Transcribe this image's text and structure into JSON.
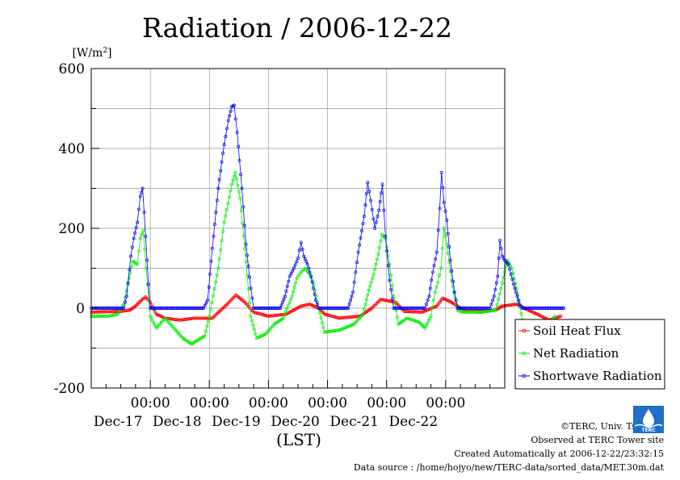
{
  "chart_data": {
    "type": "line",
    "title": "Radiation / 2006-12-22",
    "ylabel": "[W/m2]",
    "xlabel": "(LST)",
    "ylim": [
      -200,
      600
    ],
    "yticks": [
      -200,
      0,
      200,
      400,
      600
    ],
    "xlim_days": [
      -1,
      6
    ],
    "x_ticks": [
      {
        "time": "00:00",
        "date": "Dec-17"
      },
      {
        "time": "00:00",
        "date": "Dec-18"
      },
      {
        "time": "00:00",
        "date": "Dec-19"
      },
      {
        "time": "00:00",
        "date": "Dec-20"
      },
      {
        "time": "00:00",
        "date": "Dec-21"
      },
      {
        "time": "00:00",
        "date": "Dec-22"
      }
    ],
    "grid": true,
    "legend_position": "right",
    "series": [
      {
        "name": "Soil Heat Flux",
        "color": "#ff0000",
        "points": [
          [
            -1,
            -10
          ],
          [
            -0.5,
            -8
          ],
          [
            -0.35,
            -5
          ],
          [
            -0.25,
            5
          ],
          [
            -0.15,
            20
          ],
          [
            -0.08,
            28
          ],
          [
            0,
            15
          ],
          [
            0.1,
            -15
          ],
          [
            0.25,
            -25
          ],
          [
            0.5,
            -30
          ],
          [
            0.75,
            -25
          ],
          [
            1.05,
            -25
          ],
          [
            1.3,
            10
          ],
          [
            1.45,
            33
          ],
          [
            1.6,
            15
          ],
          [
            1.75,
            -10
          ],
          [
            2.0,
            -20
          ],
          [
            2.3,
            -15
          ],
          [
            2.55,
            5
          ],
          [
            2.7,
            10
          ],
          [
            2.85,
            0
          ],
          [
            2.95,
            -15
          ],
          [
            3.2,
            -25
          ],
          [
            3.55,
            -20
          ],
          [
            3.75,
            0
          ],
          [
            3.9,
            22
          ],
          [
            4.15,
            15
          ],
          [
            4.3,
            -8
          ],
          [
            4.6,
            -10
          ],
          [
            4.85,
            5
          ],
          [
            4.95,
            25
          ],
          [
            5.1,
            15
          ],
          [
            5.3,
            -5
          ],
          [
            5.6,
            -8
          ],
          [
            5.85,
            -5
          ],
          [
            5.95,
            5
          ],
          [
            6.2,
            10
          ],
          [
            6.4,
            -5
          ],
          [
            6.55,
            -15
          ],
          [
            6.75,
            -30
          ],
          [
            6.95,
            -20
          ]
        ]
      },
      {
        "name": "Net Radiation",
        "color": "#00ee00",
        "points": [
          [
            -1,
            -20
          ],
          [
            -0.7,
            -20
          ],
          [
            -0.55,
            -15
          ],
          [
            -0.45,
            10
          ],
          [
            -0.38,
            60
          ],
          [
            -0.3,
            118
          ],
          [
            -0.22,
            110
          ],
          [
            -0.17,
            175
          ],
          [
            -0.12,
            195
          ],
          [
            -0.07,
            100
          ],
          [
            0,
            -20
          ],
          [
            0.1,
            -50
          ],
          [
            0.25,
            -25
          ],
          [
            0.4,
            -50
          ],
          [
            0.55,
            -75
          ],
          [
            0.7,
            -90
          ],
          [
            0.8,
            -80
          ],
          [
            0.92,
            -70
          ],
          [
            1.0,
            -20
          ],
          [
            1.15,
            100
          ],
          [
            1.25,
            215
          ],
          [
            1.38,
            310
          ],
          [
            1.44,
            340
          ],
          [
            1.52,
            275
          ],
          [
            1.6,
            150
          ],
          [
            1.7,
            -20
          ],
          [
            1.8,
            -75
          ],
          [
            1.95,
            -65
          ],
          [
            2.1,
            -40
          ],
          [
            2.25,
            -25
          ],
          [
            2.4,
            30
          ],
          [
            2.48,
            75
          ],
          [
            2.55,
            90
          ],
          [
            2.62,
            100
          ],
          [
            2.7,
            85
          ],
          [
            2.77,
            60
          ],
          [
            2.85,
            0
          ],
          [
            2.95,
            -60
          ],
          [
            3.2,
            -55
          ],
          [
            3.45,
            -40
          ],
          [
            3.6,
            -15
          ],
          [
            3.7,
            45
          ],
          [
            3.78,
            85
          ],
          [
            3.86,
            135
          ],
          [
            3.92,
            185
          ],
          [
            3.98,
            175
          ],
          [
            4.05,
            110
          ],
          [
            4.12,
            30
          ],
          [
            4.2,
            -40
          ],
          [
            4.35,
            -25
          ],
          [
            4.55,
            -35
          ],
          [
            4.65,
            -50
          ],
          [
            4.75,
            -20
          ],
          [
            4.82,
            40
          ],
          [
            4.87,
            65
          ],
          [
            4.92,
            100
          ],
          [
            4.97,
            200
          ],
          [
            5.02,
            160
          ],
          [
            5.1,
            70
          ],
          [
            5.2,
            -5
          ],
          [
            5.3,
            -10
          ],
          [
            5.6,
            -10
          ],
          [
            5.85,
            -5
          ],
          [
            6.0,
            90
          ],
          [
            6.05,
            120
          ],
          [
            6.12,
            100
          ],
          [
            6.2,
            50
          ],
          [
            6.3,
            -30
          ],
          [
            6.45,
            -60
          ],
          [
            6.6,
            -55
          ],
          [
            6.75,
            -40
          ],
          [
            6.85,
            -20
          ]
        ]
      },
      {
        "name": "Shortwave Radiation",
        "color": "#0000ff",
        "points": [
          [
            -1,
            0
          ],
          [
            -0.45,
            0
          ],
          [
            -0.4,
            30
          ],
          [
            -0.33,
            130
          ],
          [
            -0.28,
            175
          ],
          [
            -0.22,
            215
          ],
          [
            -0.17,
            280
          ],
          [
            -0.13,
            300
          ],
          [
            -0.08,
            180
          ],
          [
            -0.03,
            60
          ],
          [
            0,
            0
          ],
          [
            0.9,
            0
          ],
          [
            0.97,
            20
          ],
          [
            1.05,
            150
          ],
          [
            1.15,
            300
          ],
          [
            1.25,
            410
          ],
          [
            1.32,
            470
          ],
          [
            1.38,
            505
          ],
          [
            1.42,
            508
          ],
          [
            1.47,
            440
          ],
          [
            1.55,
            300
          ],
          [
            1.62,
            160
          ],
          [
            1.7,
            50
          ],
          [
            1.75,
            0
          ],
          [
            2.2,
            0
          ],
          [
            2.28,
            30
          ],
          [
            2.36,
            80
          ],
          [
            2.43,
            100
          ],
          [
            2.5,
            125
          ],
          [
            2.55,
            165
          ],
          [
            2.6,
            130
          ],
          [
            2.66,
            110
          ],
          [
            2.72,
            80
          ],
          [
            2.8,
            20
          ],
          [
            2.85,
            0
          ],
          [
            3.35,
            0
          ],
          [
            3.43,
            40
          ],
          [
            3.52,
            140
          ],
          [
            3.62,
            230
          ],
          [
            3.68,
            315
          ],
          [
            3.73,
            270
          ],
          [
            3.8,
            200
          ],
          [
            3.87,
            245
          ],
          [
            3.93,
            310
          ],
          [
            3.98,
            180
          ],
          [
            4.05,
            70
          ],
          [
            4.12,
            0
          ],
          [
            4.65,
            0
          ],
          [
            4.72,
            30
          ],
          [
            4.78,
            90
          ],
          [
            4.85,
            140
          ],
          [
            4.9,
            250
          ],
          [
            4.93,
            340
          ],
          [
            4.97,
            265
          ],
          [
            5.02,
            220
          ],
          [
            5.08,
            120
          ],
          [
            5.15,
            40
          ],
          [
            5.2,
            0
          ],
          [
            5.75,
            0
          ],
          [
            5.82,
            30
          ],
          [
            5.88,
            80
          ],
          [
            5.92,
            170
          ],
          [
            5.96,
            130
          ],
          [
            6.0,
            120
          ],
          [
            6.06,
            110
          ],
          [
            6.15,
            60
          ],
          [
            6.25,
            10
          ],
          [
            6.3,
            0
          ],
          [
            7,
            0
          ]
        ]
      }
    ]
  },
  "credits": {
    "copyright": "©TERC, Univ. Tsukuba",
    "observed": "Observed at TERC Tower site",
    "created": "Created Automatically at 2006-12-22/23:32:15",
    "source": "Data source : /home/hojyo/new/TERC-data/sorted_data/MET.30m.dat"
  },
  "logo": {
    "text": "TERC",
    "color": "#1f6fc8"
  }
}
